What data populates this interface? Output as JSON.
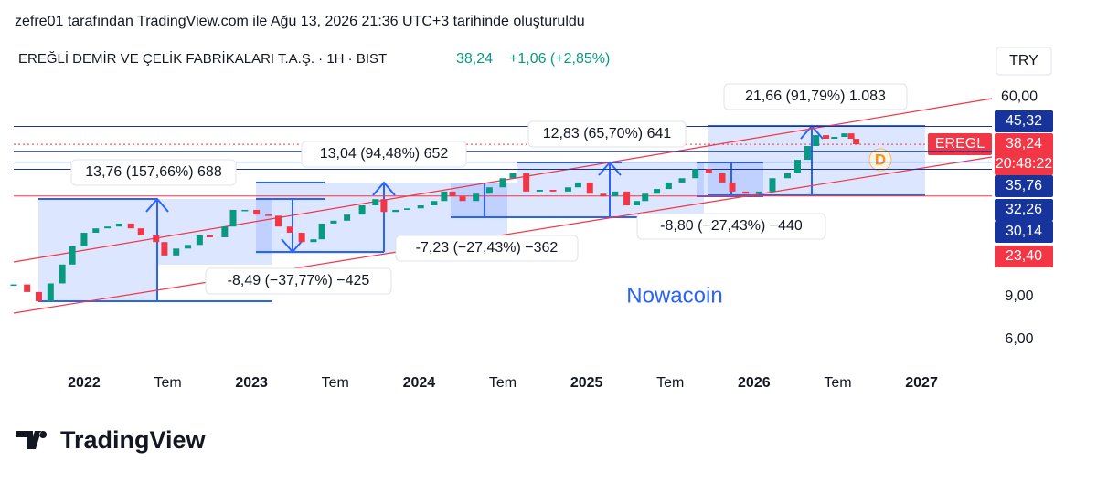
{
  "header": {
    "created": "zefre01 tarafından TradingView.com ile Ağu 13, 2026 21:36 UTC+3 tarihinde oluşturuldu",
    "symbol": "EREĞLİ DEMİR VE ÇELİK FABRİKALARI T.A.Ş. · 1H · BIST",
    "price": "38,24",
    "change": "+1,06 (+2,85%)",
    "currency": "TRY"
  },
  "chart_data": {
    "type": "candlestick",
    "log_scale": true,
    "up_color": "#089981",
    "down_color": "#f23645",
    "x": [
      2021.58,
      2021.66,
      2021.73,
      2021.8,
      2021.87,
      2021.93,
      2022.0,
      2022.07,
      2022.14,
      2022.21,
      2022.28,
      2022.34,
      2022.43,
      2022.48,
      2022.55,
      2022.62,
      2022.69,
      2022.75,
      2022.84,
      2022.89,
      2022.96,
      2023.03,
      2023.1,
      2023.16,
      2023.23,
      2023.3,
      2023.37,
      2023.42,
      2023.49,
      2023.57,
      2023.66,
      2023.74,
      2023.79,
      2023.86,
      2023.93,
      2024.01,
      2024.09,
      2024.15,
      2024.2,
      2024.26,
      2024.34,
      2024.42,
      2024.5,
      2024.56,
      2024.64,
      2024.72,
      2024.8,
      2024.89,
      2024.95,
      2025.02,
      2025.1,
      2025.17,
      2025.24,
      2025.3,
      2025.35,
      2025.42,
      2025.49,
      2025.57,
      2025.65,
      2025.73,
      2025.81,
      2025.87,
      2025.95,
      2026.03,
      2026.11,
      2026.2,
      2026.26,
      2026.32,
      2026.37,
      2026.43,
      2026.48,
      2026.54,
      2026.58,
      2026.61
    ],
    "series": [
      {
        "name": "EREGL",
        "values": [
          10.1,
          9.4,
          8.6,
          10.2,
          12.2,
          14.5,
          16.5,
          17.2,
          17.5,
          18.0,
          17.2,
          16.1,
          15.1,
          13.3,
          14.2,
          14.7,
          16.1,
          15.8,
          17.5,
          20.5,
          20.5,
          19.6,
          19.4,
          17.5,
          16.5,
          15.1,
          15.5,
          18.0,
          18.5,
          19.6,
          21.4,
          22.7,
          20.1,
          20.5,
          20.8,
          21.4,
          22.3,
          24.4,
          23.3,
          22.3,
          23.9,
          25.4,
          27.7,
          29.0,
          24.4,
          24.8,
          24.4,
          25.4,
          26.6,
          23.9,
          23.3,
          24.4,
          21.4,
          22.3,
          23.9,
          25.0,
          26.6,
          27.7,
          30.2,
          29.0,
          26.6,
          24.4,
          23.9,
          24.4,
          27.7,
          29.0,
          33.0,
          37.6,
          41.7,
          40.3,
          41.0,
          42.4,
          40.3,
          38.24
        ]
      }
    ],
    "xlim": [
      2021.58,
      2027.42
    ],
    "xticks": [
      2022,
      {
        "value": 2022.5,
        "label": "Tem"
      },
      2023,
      {
        "value": 2023.5,
        "label": "Tem"
      },
      2024,
      {
        "value": 2024.5,
        "label": "Tem"
      },
      2025,
      {
        "value": 2025.5,
        "label": "Tem"
      },
      2026,
      {
        "value": 2026.5,
        "label": "Tem"
      },
      2027
    ],
    "ylim": [
      4.9,
      69
    ],
    "yticks": [
      {
        "value": 6,
        "label": "6,00"
      },
      {
        "value": 9,
        "label": "9,00"
      },
      {
        "value": 60,
        "label": "60,00"
      }
    ],
    "price_levels": [
      {
        "value": 45.32,
        "label": "45,32",
        "color": "#17349c"
      },
      {
        "value": 38.24,
        "label": "38,24",
        "color": "#f23645"
      },
      {
        "value": 35.76,
        "label": "35,76",
        "color": "#17349c"
      },
      {
        "value": 32.26,
        "label": "32,26",
        "color": "#17349c"
      },
      {
        "value": 30.14,
        "label": "30,14",
        "color": "#17349c"
      },
      {
        "value": 23.4,
        "label": "23,40",
        "color": "#f23645"
      }
    ],
    "countdown": "20:48:22",
    "annotations": [
      "13,76 (157,66%) 688",
      "13,04 (94,48%) 652",
      "12,83 (65,70%) 641",
      "21,66 (91,79%) 1.083",
      "-8,49 (−37,77%) −425",
      "-7,23 (−27,43%) −362",
      "-8,80 (−27,43%) −440"
    ],
    "watermark": "Nowacoin",
    "marker": "D"
  },
  "footer": {
    "logo": "TradingView"
  }
}
